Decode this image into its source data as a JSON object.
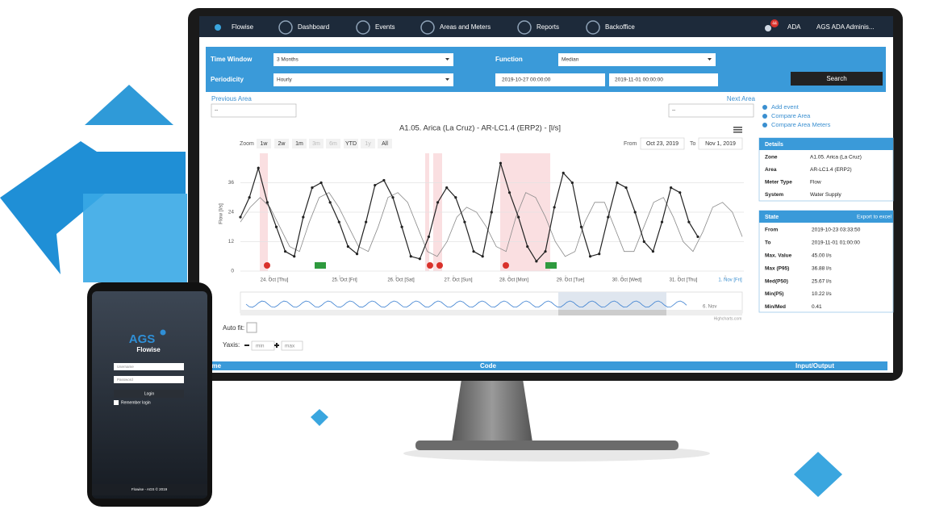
{
  "nav": {
    "brand": "Flowise",
    "items": [
      "Dashboard",
      "Events",
      "Areas and Meters",
      "Reports",
      "Backoffice"
    ],
    "notifications": "44",
    "user_short": "ADA",
    "user": "AGS ADA Adminis..."
  },
  "filters": {
    "time_window_label": "Time Window",
    "time_window": "3 Months",
    "periodicity_label": "Periodicity",
    "periodicity": "Hourly",
    "function_label": "Function",
    "function": "Median",
    "date_from": "2019-10-27 00:00:00",
    "date_to": "2019-11-01 00:00:00",
    "search": "Search"
  },
  "area_nav": {
    "previous": "Previous Area",
    "previous_value": "--",
    "next": "Next Area",
    "next_value": "--"
  },
  "actions": [
    "Add event",
    "Compare Area",
    "Compare Area Meters"
  ],
  "chart": {
    "title": "A1.05. Arica (La Cruz) - AR-LC1.4 (ERP2) - [l/s]",
    "zoom_label": "Zoom",
    "zoom_buttons": [
      "1w",
      "2w",
      "1m",
      "3m",
      "6m",
      "YTD",
      "1y",
      "All"
    ],
    "from_label": "From",
    "from": "Oct 23, 2019",
    "to_label": "To",
    "to": "Nov 1, 2019",
    "y_label": "Flow [l/s]",
    "ylim": [
      0,
      48
    ],
    "yticks": [
      0,
      12,
      24,
      36
    ],
    "categories": [
      "24. Oct [Thu]",
      "25. Oct [Fri]",
      "26. Oct [Sat]",
      "27. Oct [Sun]",
      "28. Oct [Mon]",
      "29. Oct [Tue]",
      "30. Oct [Wed]",
      "31. Oct [Thu]",
      "1. Nov [Fri]"
    ],
    "navigator_label": "6. Nov",
    "credit": "Highcharts.com",
    "series": [
      {
        "color": "#222222",
        "values": [
          22,
          30,
          42,
          28,
          18,
          8,
          6,
          22,
          34,
          36,
          28,
          20,
          10,
          7,
          20,
          35,
          37,
          30,
          18,
          6,
          5,
          14,
          28,
          34,
          30,
          20,
          8,
          6,
          24,
          44,
          32,
          22,
          10,
          4,
          8,
          26,
          40,
          36,
          18,
          6,
          7,
          22,
          36,
          34,
          24,
          12,
          8,
          20,
          34,
          32,
          20,
          14
        ]
      },
      {
        "color": "#8a8a8a",
        "values": [
          20,
          26,
          30,
          26,
          18,
          10,
          8,
          20,
          30,
          32,
          26,
          18,
          10,
          8,
          18,
          30,
          32,
          28,
          18,
          8,
          6,
          12,
          22,
          26,
          24,
          18,
          10,
          8,
          22,
          32,
          30,
          22,
          12,
          6,
          8,
          20,
          28,
          28,
          18,
          8,
          8,
          18,
          28,
          30,
          22,
          12,
          8,
          16,
          26,
          28,
          24,
          14
        ]
      }
    ]
  },
  "controls": {
    "auto_fit": "Auto fit:",
    "yaxis": "Yaxis:",
    "min": "min",
    "max": "max"
  },
  "table_header": [
    "ame",
    "Code",
    "Input/Output"
  ],
  "details": {
    "title": "Details",
    "rows": [
      [
        "Zone",
        "A1.05. Arica (La Cruz)"
      ],
      [
        "Area",
        "AR-LC1.4 (ERP2)"
      ],
      [
        "Meter Type",
        "Flow"
      ],
      [
        "System",
        "Water Supply"
      ]
    ]
  },
  "state": {
    "title": "State",
    "export": "Export to excel",
    "rows": [
      [
        "From",
        "2019-10-23 03:33:50"
      ],
      [
        "To",
        "2019-11-01 01:00:00"
      ],
      [
        "Max. Value",
        "45.00 l/s"
      ],
      [
        "Max (P95)",
        "36.88 l/s"
      ],
      [
        "Med(P50)",
        "25.67 l/s"
      ],
      [
        "Min(P5)",
        "10.22 l/s"
      ],
      [
        "Min/Med",
        "0.41"
      ]
    ]
  },
  "phone": {
    "logo": "AGS",
    "app": "Flowise",
    "username": "Username",
    "password": "Password",
    "login": "Login",
    "remember": "Remember login",
    "footer": "Flowise - AGS © 2019"
  }
}
